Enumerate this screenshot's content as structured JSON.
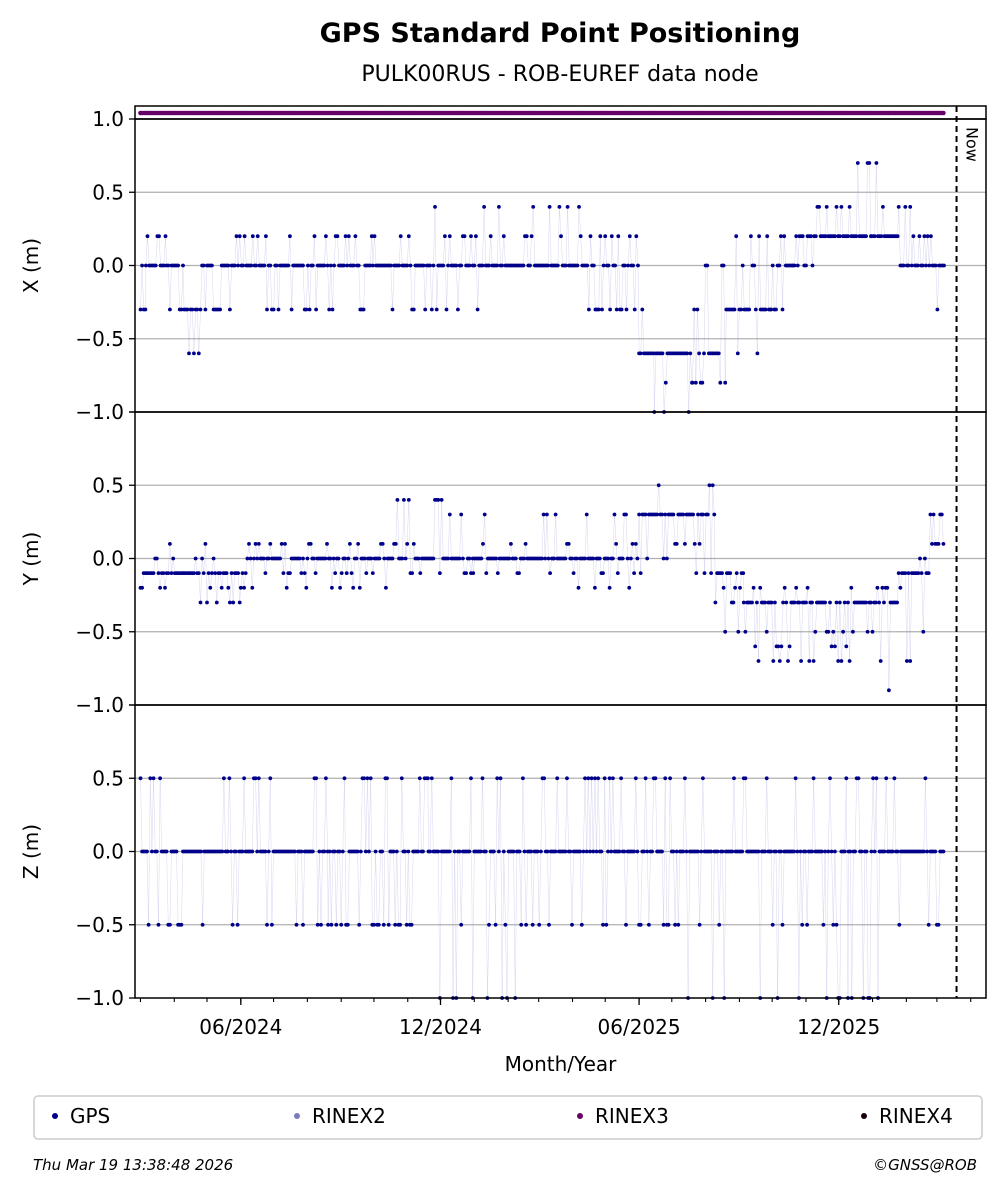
{
  "header": {
    "title": "GPS Standard Point Positioning",
    "subtitle": "PULK00RUS - ROB-EUREF data node"
  },
  "footer": {
    "timestamp": "Thu Mar 19 13:38:48 2026",
    "copyright": "©GNSS@ROB"
  },
  "legend": {
    "placement": "bottom",
    "items": [
      {
        "label": "GPS",
        "color": "#00008b"
      },
      {
        "label": "RINEX2",
        "color": "#7b7bc4"
      },
      {
        "label": "RINEX3",
        "color": "#660066"
      },
      {
        "label": "RINEX4",
        "color": "#1a0010"
      }
    ]
  },
  "chart_data": [
    {
      "type": "scatter",
      "panel": "X",
      "ylabel": "X (m)",
      "ylim": [
        -1.0,
        1.0
      ],
      "yticks": [
        1.0,
        0.5,
        0.0,
        -0.5,
        -1.0
      ],
      "ytick_labels": [
        "1.0",
        "0.5",
        "0.0",
        "−0.5",
        "−1.0"
      ],
      "grid": true,
      "now_label": "Now",
      "data_availability": {
        "series": "RINEX3",
        "start": "2024-03-01",
        "end": "2026-03-08",
        "color": "#660066"
      },
      "series": [
        {
          "name": "GPS",
          "color": "#00008b",
          "segments": [
            {
              "start": "2024-03-01",
              "end": "2024-03-06",
              "level": -0.3,
              "alt": [
                0.0
              ]
            },
            {
              "start": "2024-03-06",
              "end": "2024-03-25",
              "level": 0.0,
              "alt": [
                0.2
              ]
            },
            {
              "start": "2024-03-25",
              "end": "2024-04-10",
              "level": 0.0,
              "alt": [
                -0.3,
                0.2
              ]
            },
            {
              "start": "2024-04-10",
              "end": "2024-04-25",
              "level": -0.3,
              "alt": [
                0.0,
                -0.6,
                0.2
              ]
            },
            {
              "start": "2024-04-25",
              "end": "2024-05-25",
              "level": 0.0,
              "alt": [
                -0.3
              ]
            },
            {
              "start": "2024-05-25",
              "end": "2024-06-25",
              "level": 0.0,
              "alt": [
                0.2
              ]
            },
            {
              "start": "2024-06-25",
              "end": "2024-07-10",
              "level": 0.0,
              "alt": [
                -0.3
              ]
            },
            {
              "start": "2024-07-10",
              "end": "2024-09-30",
              "level": 0.0,
              "alt": [
                0.2,
                -0.3
              ]
            },
            {
              "start": "2024-09-30",
              "end": "2024-11-20",
              "level": 0.0,
              "alt": [
                0.2,
                -0.3
              ]
            },
            {
              "start": "2024-11-20",
              "end": "2025-01-10",
              "level": 0.0,
              "alt": [
                0.2,
                0.4,
                -0.3
              ]
            },
            {
              "start": "2025-01-10",
              "end": "2025-04-10",
              "level": 0.0,
              "alt": [
                0.2,
                -0.3,
                0.4
              ]
            },
            {
              "start": "2025-04-10",
              "end": "2025-06-01",
              "level": 0.0,
              "alt": [
                -0.3,
                0.2
              ]
            },
            {
              "start": "2025-06-01",
              "end": "2025-06-15",
              "level": -0.6,
              "alt": [
                -0.3
              ]
            },
            {
              "start": "2025-06-15",
              "end": "2025-07-20",
              "level": -0.6,
              "alt": [
                -0.8,
                -1.0
              ]
            },
            {
              "start": "2025-07-20",
              "end": "2025-08-20",
              "level": -0.6,
              "alt": [
                -0.3,
                0.0,
                -0.8
              ]
            },
            {
              "start": "2025-08-20",
              "end": "2025-09-30",
              "level": -0.3,
              "alt": [
                -0.6,
                0.0,
                0.2
              ]
            },
            {
              "start": "2025-09-30",
              "end": "2025-10-20",
              "level": 0.0,
              "alt": [
                0.2,
                -0.3
              ]
            },
            {
              "start": "2025-10-20",
              "end": "2025-11-20",
              "level": 0.2,
              "alt": [
                0.4,
                0.0
              ]
            },
            {
              "start": "2025-11-20",
              "end": "2025-12-31",
              "level": 0.2,
              "alt": [
                0.4,
                0.7
              ]
            },
            {
              "start": "2025-12-31",
              "end": "2026-01-25",
              "level": 0.2,
              "alt": [
                0.4,
                0.7
              ]
            },
            {
              "start": "2026-01-25",
              "end": "2026-02-10",
              "level": 0.0,
              "alt": [
                0.2,
                0.4
              ]
            },
            {
              "start": "2026-02-10",
              "end": "2026-03-08",
              "level": 0.0,
              "alt": [
                -0.3,
                0.2
              ]
            }
          ]
        }
      ]
    },
    {
      "type": "scatter",
      "panel": "Y",
      "ylabel": "Y (m)",
      "ylim": [
        -1.0,
        1.0
      ],
      "yticks": [
        1.0,
        0.5,
        0.0,
        -0.5,
        -1.0
      ],
      "ytick_labels": [
        "",
        "0.5",
        "0.0",
        "−0.5",
        "−1.0"
      ],
      "grid": true,
      "series": [
        {
          "name": "GPS",
          "color": "#00008b",
          "segments": [
            {
              "start": "2024-03-01",
              "end": "2024-04-10",
              "level": -0.1,
              "alt": [
                0.0,
                0.1,
                -0.2
              ]
            },
            {
              "start": "2024-04-10",
              "end": "2024-06-01",
              "level": -0.1,
              "alt": [
                0.0,
                -0.2,
                -0.3,
                0.1
              ]
            },
            {
              "start": "2024-06-01",
              "end": "2024-08-01",
              "level": 0.0,
              "alt": [
                -0.1,
                0.1,
                -0.2
              ]
            },
            {
              "start": "2024-08-01",
              "end": "2024-10-15",
              "level": 0.0,
              "alt": [
                0.1,
                -0.1,
                -0.2
              ]
            },
            {
              "start": "2024-10-15",
              "end": "2024-12-31",
              "level": 0.0,
              "alt": [
                0.1,
                0.3,
                0.4,
                -0.1
              ]
            },
            {
              "start": "2024-12-31",
              "end": "2025-03-15",
              "level": 0.0,
              "alt": [
                0.1,
                -0.1,
                0.3
              ]
            },
            {
              "start": "2025-03-15",
              "end": "2025-06-01",
              "level": 0.0,
              "alt": [
                -0.1,
                0.1,
                0.3,
                -0.2
              ]
            },
            {
              "start": "2025-06-01",
              "end": "2025-08-10",
              "level": 0.3,
              "alt": [
                0.5,
                0.4,
                0.1,
                0.0,
                -0.1
              ]
            },
            {
              "start": "2025-08-10",
              "end": "2025-09-05",
              "level": -0.1,
              "alt": [
                -0.3,
                -0.2,
                -0.5
              ]
            },
            {
              "start": "2025-09-05",
              "end": "2025-11-05",
              "level": -0.3,
              "alt": [
                -0.5,
                -0.2,
                -0.6,
                -0.7
              ]
            },
            {
              "start": "2025-11-05",
              "end": "2026-01-10",
              "level": -0.3,
              "alt": [
                -0.5,
                -0.2,
                -0.6,
                -0.7
              ]
            },
            {
              "start": "2026-01-10",
              "end": "2026-01-25",
              "level": -0.3,
              "alt": [
                -0.9,
                -0.5,
                -0.2
              ]
            },
            {
              "start": "2026-01-25",
              "end": "2026-02-20",
              "level": -0.1,
              "alt": [
                -0.2,
                0.0,
                -0.5,
                -0.7
              ]
            },
            {
              "start": "2026-02-20",
              "end": "2026-03-08",
              "level": 0.1,
              "alt": [
                0.4,
                0.3,
                -0.1
              ]
            }
          ]
        }
      ]
    },
    {
      "type": "scatter",
      "panel": "Z",
      "ylabel": "Z (m)",
      "ylim": [
        -1.0,
        1.0
      ],
      "yticks": [
        1.0,
        0.5,
        0.0,
        -0.5,
        -1.0
      ],
      "ytick_labels": [
        "",
        "0.5",
        "0.0",
        "−0.5",
        "−1.0"
      ],
      "grid": true,
      "xlabel": "Month/Year",
      "xlim": [
        "2024-02-25",
        "2026-04-15"
      ],
      "xticks": [
        "2024-06-01",
        "2024-12-01",
        "2025-06-01",
        "2025-12-01"
      ],
      "xtick_labels": [
        "06/2024",
        "12/2024",
        "06/2025",
        "12/2025"
      ],
      "now": "2026-03-19",
      "series": [
        {
          "name": "GPS",
          "color": "#00008b",
          "segments": [
            {
              "start": "2024-03-01",
              "end": "2024-04-15",
              "level": 0.0,
              "alt": [
                0.5,
                -0.5
              ]
            },
            {
              "start": "2024-04-15",
              "end": "2024-05-20",
              "level": 0.0,
              "alt": [
                -0.5,
                0.5
              ]
            },
            {
              "start": "2024-05-20",
              "end": "2024-08-20",
              "level": 0.0,
              "alt": [
                0.5,
                -0.5
              ]
            },
            {
              "start": "2024-08-20",
              "end": "2024-11-20",
              "level": 0.0,
              "alt": [
                0.5,
                -0.5
              ]
            },
            {
              "start": "2024-11-20",
              "end": "2025-02-10",
              "level": 0.0,
              "alt": [
                0.5,
                -0.5,
                -1.0
              ]
            },
            {
              "start": "2025-02-10",
              "end": "2025-06-10",
              "level": 0.0,
              "alt": [
                -0.5,
                0.5
              ]
            },
            {
              "start": "2025-06-10",
              "end": "2025-07-10",
              "level": 0.0,
              "alt": [
                -0.5,
                0.5
              ]
            },
            {
              "start": "2025-07-10",
              "end": "2025-09-30",
              "level": 0.0,
              "alt": [
                0.5,
                -1.0,
                -0.5
              ]
            },
            {
              "start": "2025-09-30",
              "end": "2025-12-10",
              "level": 0.0,
              "alt": [
                0.5,
                -1.0,
                -0.5
              ]
            },
            {
              "start": "2025-12-10",
              "end": "2026-01-15",
              "level": 0.0,
              "alt": [
                0.5,
                -1.0
              ]
            },
            {
              "start": "2026-01-15",
              "end": "2026-02-20",
              "level": 0.0,
              "alt": [
                -0.5,
                0.5
              ]
            },
            {
              "start": "2026-02-20",
              "end": "2026-03-08",
              "level": 0.0,
              "alt": [
                0.5,
                -0.5,
                -1.0
              ]
            }
          ]
        }
      ]
    }
  ]
}
